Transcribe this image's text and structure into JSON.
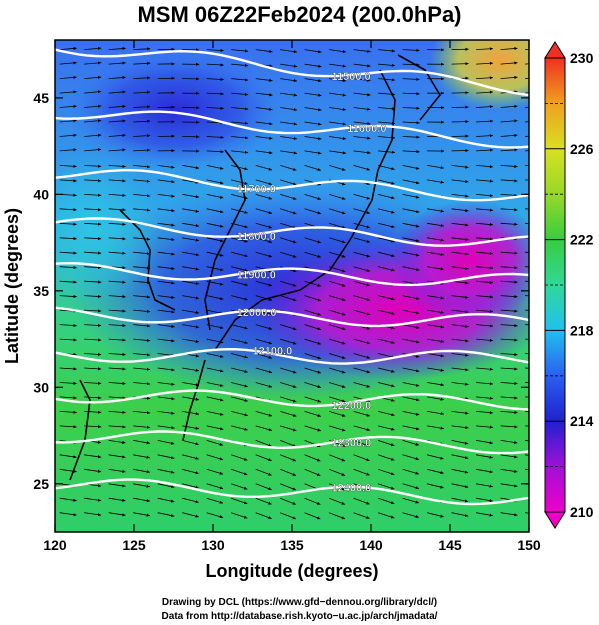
{
  "title": "MSM 06Z22Feb2024 (200.0hPa)",
  "x_axis": {
    "label": "Longitude (degrees)",
    "range": [
      120,
      150
    ],
    "ticks": [
      120,
      125,
      130,
      135,
      140,
      145,
      150
    ]
  },
  "y_axis": {
    "label": "Latitude  (degrees)",
    "range": [
      22.5,
      48
    ],
    "ticks": [
      25,
      30,
      35,
      40,
      45
    ]
  },
  "colorbar": {
    "range": [
      210,
      230
    ],
    "ticks": [
      210,
      214,
      218,
      222,
      226,
      230
    ]
  },
  "contours": [
    {
      "value": 11500.0,
      "label": "11500.0"
    },
    {
      "value": 11600.0,
      "label": "11600.0"
    },
    {
      "value": 11700.0,
      "label": "11700.0"
    },
    {
      "value": 11800.0,
      "label": "11800.0"
    },
    {
      "value": 11900.0,
      "label": "11900.0"
    },
    {
      "value": 12000.0,
      "label": "12000.0"
    },
    {
      "value": 12100.0,
      "label": "12100.0"
    },
    {
      "value": 12200.0,
      "label": "12200.0"
    },
    {
      "value": 12300.0,
      "label": "12300.0"
    },
    {
      "value": 12400.0,
      "label": "12400.0"
    }
  ],
  "credits": {
    "line1": "Drawing by DCL (https://www.gfd−dennou.org/library/dcl/)",
    "line2": "Data from http://database.rish.kyoto−u.ac.jp/arch/jmadata/"
  },
  "colors": {
    "field_low": "#cc00aa",
    "field_mid": "#2266ee",
    "field_high": "#33cc33",
    "contour": "#ffffff",
    "wind_vector": "#000000"
  }
}
